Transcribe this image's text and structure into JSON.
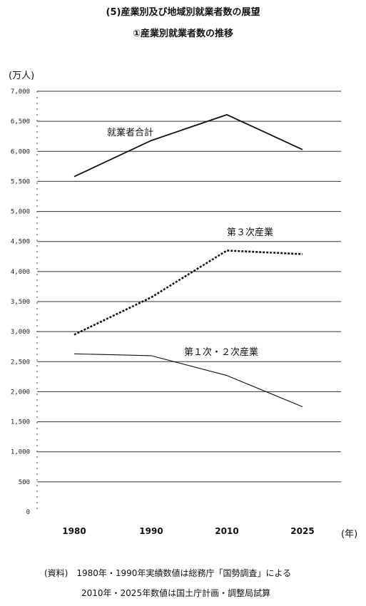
{
  "header": {
    "title": "(5)産業別及び地域別就業者数の展望",
    "subtitle": "①産業別就業者数の推移"
  },
  "axis": {
    "y_unit": "(万人)",
    "x_unit": "(年)"
  },
  "notes": {
    "line1": "(資料)　1980年・1990年実績数値は総務庁「国勢調査」による",
    "line2": "2010年・2025年数値は国土庁計画・調整局試算"
  },
  "chart_data": {
    "type": "line",
    "title": "①産業別就業者数の推移",
    "xlabel": "(年)",
    "ylabel": "(万人)",
    "x": [
      "1980",
      "1990",
      "2010",
      "2025"
    ],
    "ylim": [
      0,
      7000
    ],
    "yticks": [
      0,
      500,
      1000,
      1500,
      2000,
      2500,
      3000,
      3500,
      4000,
      4500,
      5000,
      5500,
      6000,
      6500,
      7000
    ],
    "ytick_labels": [
      "0",
      "500",
      "1,000",
      "1,500",
      "2,000",
      "2,500",
      "3,000",
      "3,500",
      "4,000",
      "4,500",
      "5,000",
      "5,500",
      "6,000",
      "6,500",
      "7,000"
    ],
    "grid": true,
    "series": [
      {
        "name": "就業者合計",
        "values": [
          5580,
          6180,
          6610,
          6030
        ],
        "style": "solid"
      },
      {
        "name": "第３次産業",
        "values": [
          2950,
          3570,
          4350,
          4290
        ],
        "style": "dotted"
      },
      {
        "name": "第１次・２次産業",
        "values": [
          2630,
          2600,
          2270,
          1750
        ],
        "style": "thin"
      }
    ]
  }
}
